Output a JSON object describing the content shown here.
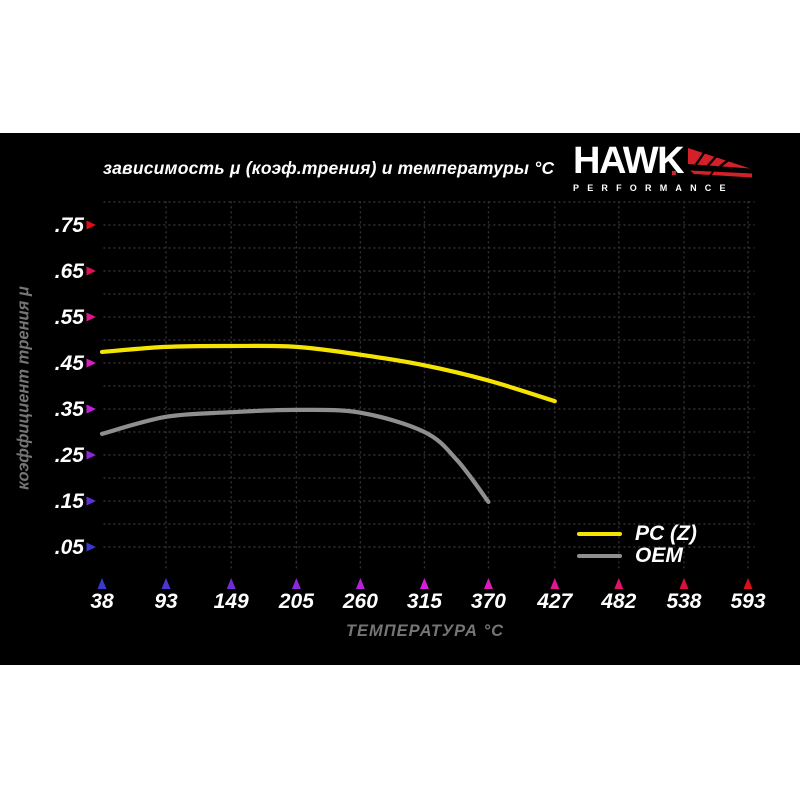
{
  "page": {
    "background": "#ffffff",
    "panel_background": "#000000"
  },
  "logo": {
    "brand": "HAWK",
    "sub": "PERFORMANCE",
    "red": "#d42029",
    "white": "#ffffff"
  },
  "chart_data": {
    "type": "line",
    "title": "зависимость μ (коэф.трения) и температуры °C",
    "xlabel": "ТЕМПЕРАТУРА °C",
    "ylabel": "коэффициент трения μ",
    "xlim": [
      38,
      593
    ],
    "ylim": [
      0,
      0.8
    ],
    "x_ticks": [
      38,
      93,
      149,
      205,
      260,
      315,
      370,
      427,
      482,
      538,
      593
    ],
    "y_ticks": [
      {
        "value": 0.75,
        "label": ".75"
      },
      {
        "value": 0.65,
        "label": ".65"
      },
      {
        "value": 0.55,
        "label": ".55"
      },
      {
        "value": 0.45,
        "label": ".45"
      },
      {
        "value": 0.35,
        "label": ".35"
      },
      {
        "value": 0.25,
        "label": ".25"
      },
      {
        "value": 0.15,
        "label": ".15"
      },
      {
        "value": 0.05,
        "label": ".05"
      }
    ],
    "grid": {
      "show": true,
      "y_step": 0.05,
      "style": "dotted",
      "color": "#343434"
    },
    "legend": {
      "position": "lower-right",
      "entries": [
        "PC (Z)",
        "OEM"
      ]
    },
    "series": [
      {
        "name": "PC (Z)",
        "color": "#f5e400",
        "points": [
          [
            38,
            0.474
          ],
          [
            93,
            0.485
          ],
          [
            149,
            0.487
          ],
          [
            205,
            0.485
          ],
          [
            260,
            0.468
          ],
          [
            315,
            0.445
          ],
          [
            370,
            0.412
          ],
          [
            427,
            0.367
          ]
        ]
      },
      {
        "name": "OEM",
        "color": "#8f8f8f",
        "points": [
          [
            38,
            0.296
          ],
          [
            93,
            0.333
          ],
          [
            149,
            0.343
          ],
          [
            205,
            0.348
          ],
          [
            260,
            0.342
          ],
          [
            315,
            0.3
          ],
          [
            343,
            0.239
          ],
          [
            370,
            0.148
          ]
        ]
      }
    ],
    "axis_colors": {
      "cold": "#4444bb",
      "mid": "#8b2080",
      "warm": "#c01555",
      "hot": "#e00019"
    }
  }
}
